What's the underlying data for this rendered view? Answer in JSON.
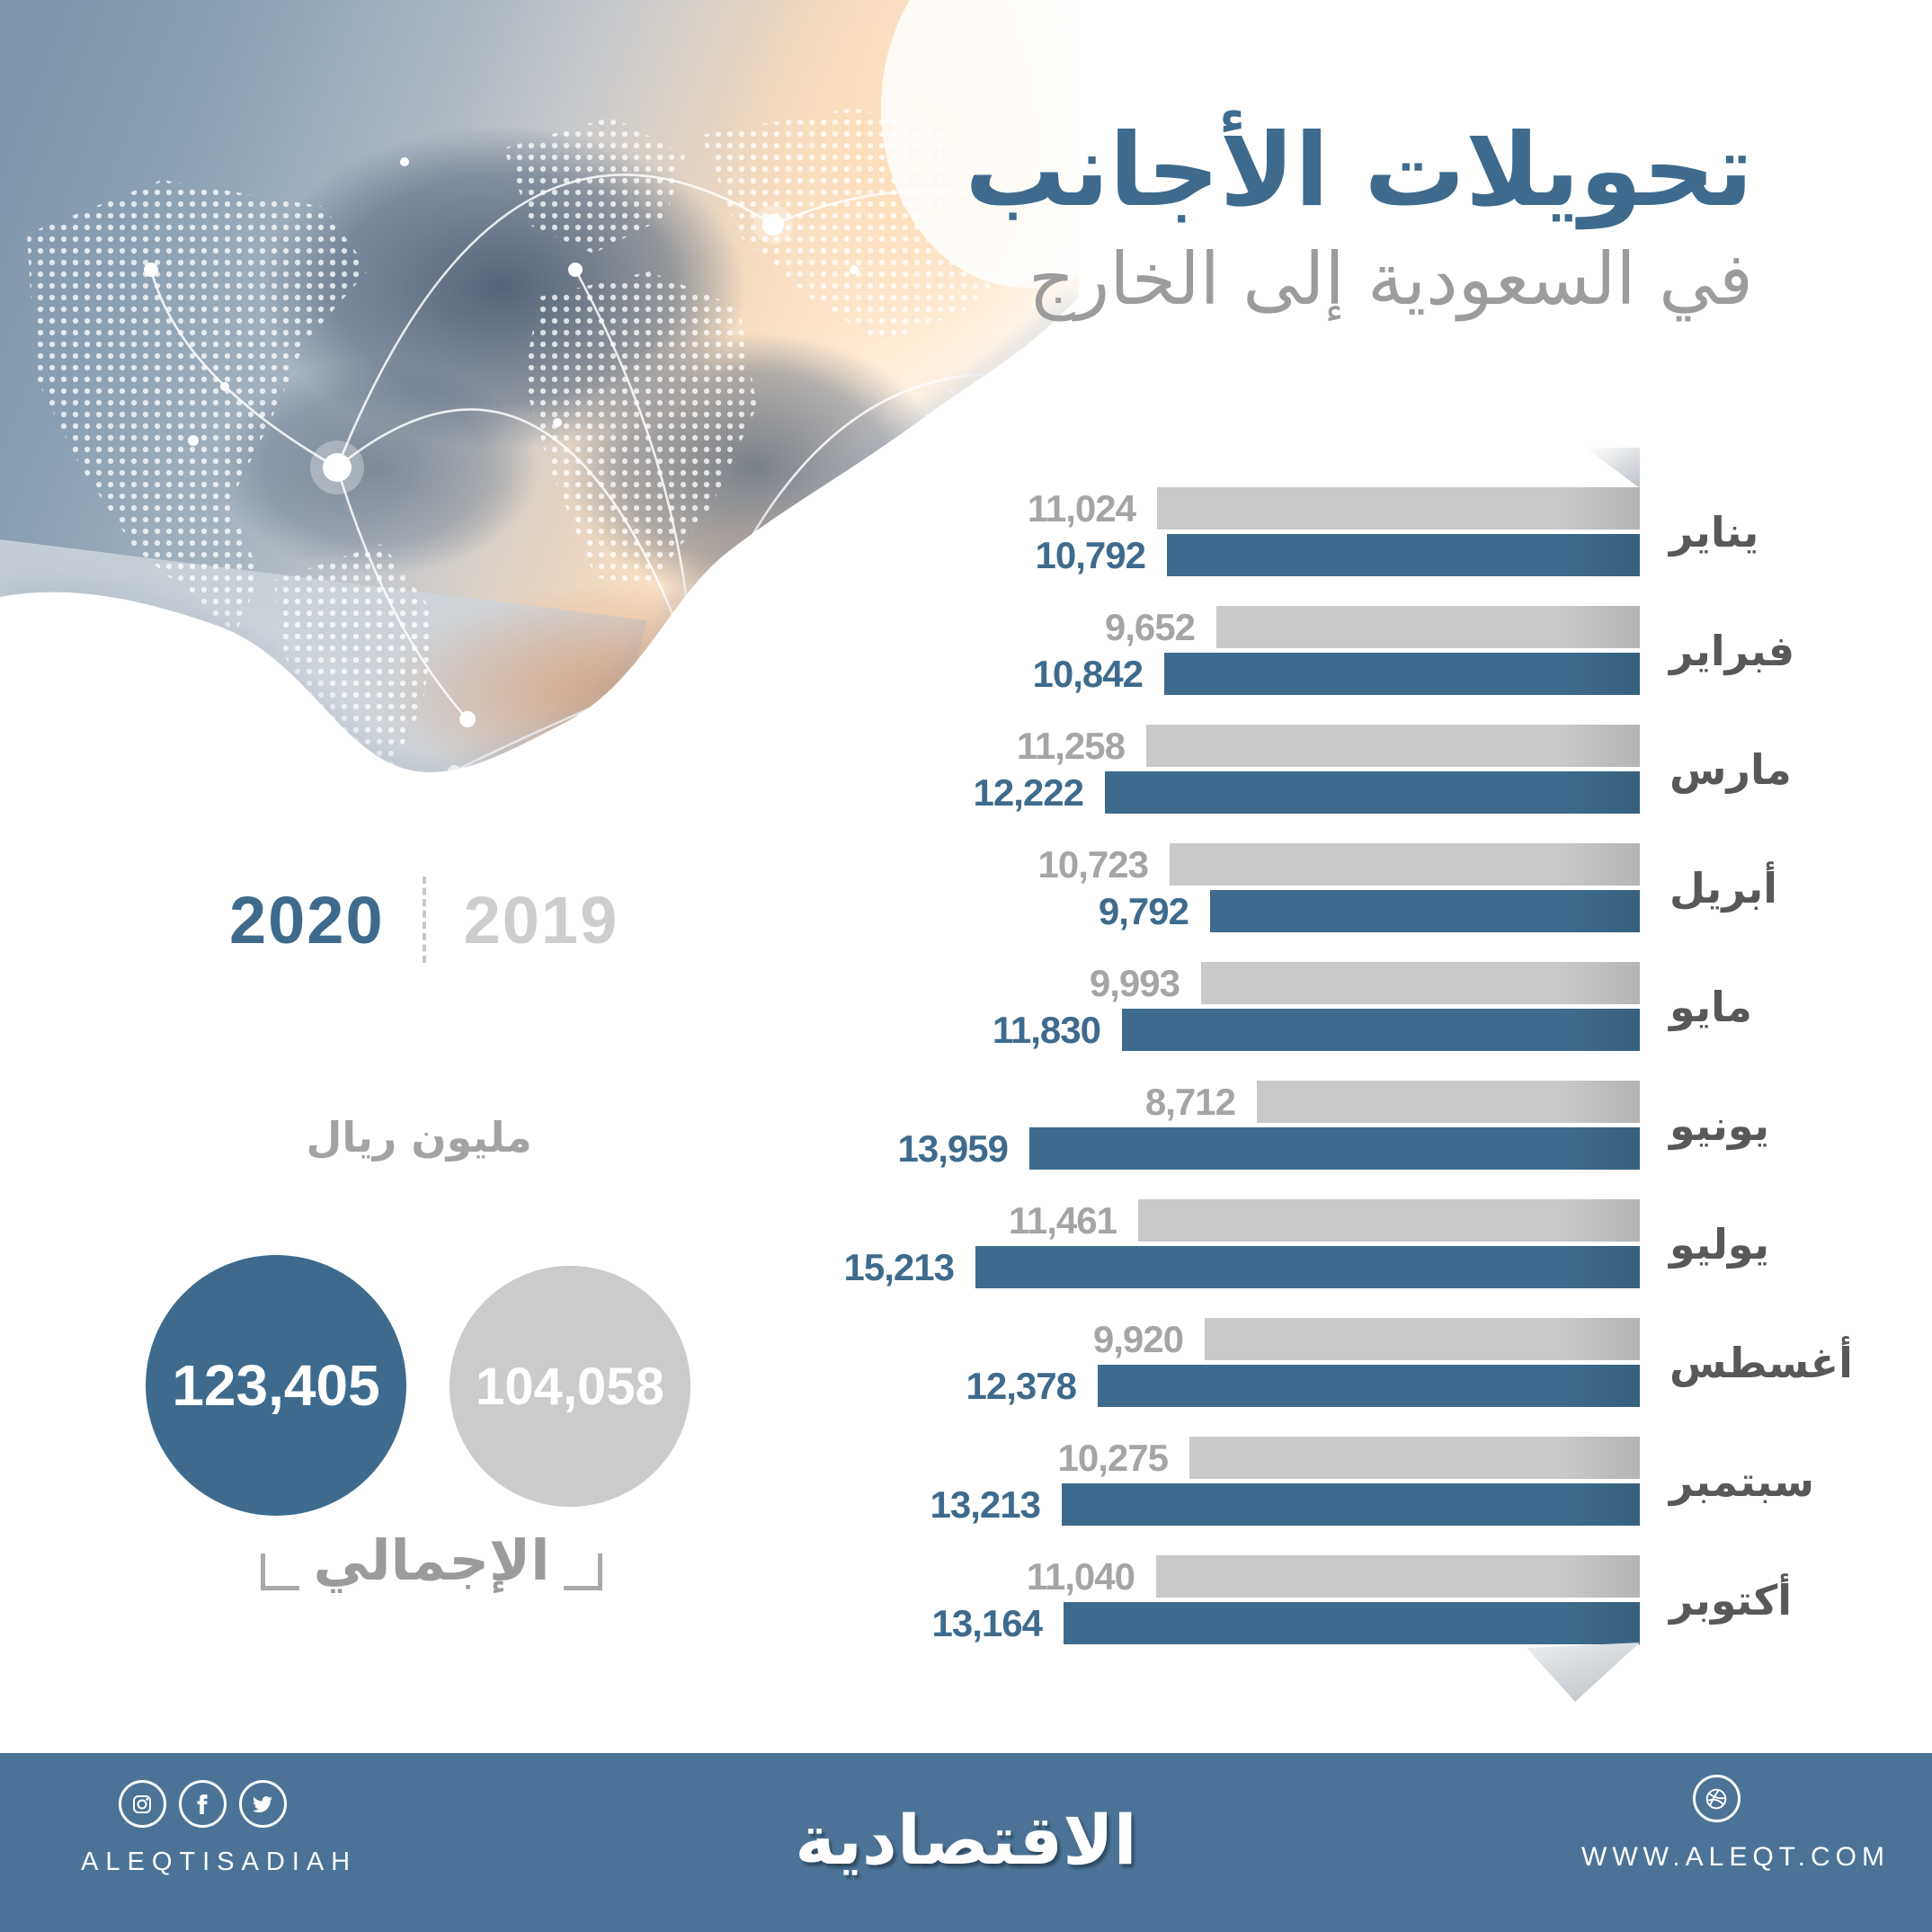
{
  "title": {
    "main": "تحويلات الأجانب",
    "sub": "في السعودية إلى الخارج"
  },
  "legend": {
    "y2020": "2020",
    "y2019": "2019"
  },
  "unit_label": "مليون ريال",
  "totals": {
    "label": "الإجمالي",
    "y2020": "123,405",
    "y2019": "104,058"
  },
  "chart_data": {
    "type": "bar",
    "orientation": "horizontal",
    "title": "تحويلات الأجانب في السعودية إلى الخارج",
    "unit": "مليون ريال",
    "categories": [
      "يناير",
      "فبراير",
      "مارس",
      "أبريل",
      "مايو",
      "يونيو",
      "يوليو",
      "أغسطس",
      "سبتمبر",
      "أكتوبر"
    ],
    "series": [
      {
        "name": "2019",
        "color": "#c9c9c9",
        "values": [
          11024,
          9652,
          11258,
          10723,
          9993,
          8712,
          11461,
          9920,
          10275,
          11040
        ]
      },
      {
        "name": "2020",
        "color": "#3e6b8d",
        "values": [
          10792,
          10842,
          12222,
          9792,
          11830,
          13959,
          15213,
          12378,
          13213,
          13164
        ]
      }
    ],
    "totals": {
      "2019": 104058,
      "2020": 123405
    },
    "value_axis_range": [
      0,
      15600
    ],
    "grid": false,
    "legend_position": "left",
    "bars_right_aligned": true
  },
  "colors": {
    "accent_blue": "#3e6b8d",
    "bar_gray": "#c9c9c9",
    "footer_bg": "#4a7397",
    "value_gray": "#a5a5a7",
    "month_label": "#58585b",
    "subtitle_gray": "#9c9c9c"
  },
  "footer": {
    "handle": "ALEQTISADIAH",
    "logo": "الاقتصادية",
    "website": "WWW.ALEQT.COM",
    "icons": [
      "instagram-icon",
      "facebook-icon",
      "twitter-icon",
      "dribbble-icon"
    ]
  }
}
